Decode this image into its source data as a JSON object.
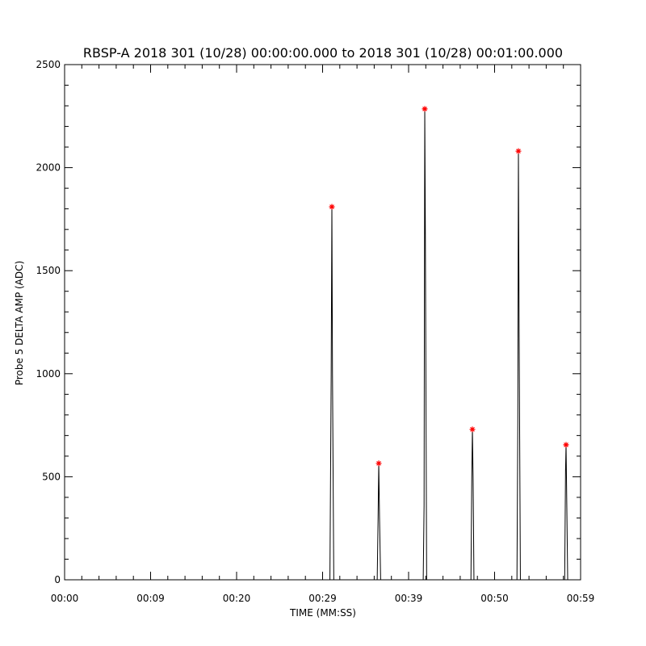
{
  "chart_data": {
    "type": "line",
    "title": "RBSP-A 2018 301 (10/28) 00:00:00.000 to 2018 301 (10/28) 00:01:00.000",
    "x_label": "TIME (MM:SS)",
    "y_label": "Probe 5 DELTA AMP (ADC)",
    "xlim": [
      0,
      60
    ],
    "xticks": [
      {
        "value": 0,
        "label": "00:00"
      },
      {
        "value": 10,
        "label": "00:09"
      },
      {
        "value": 20,
        "label": "00:20"
      },
      {
        "value": 30,
        "label": "00:29"
      },
      {
        "value": 40,
        "label": "00:39"
      },
      {
        "value": 50,
        "label": "00:50"
      },
      {
        "value": 60,
        "label": "00:59"
      }
    ],
    "ylim": [
      0,
      2500
    ],
    "yticks": [
      0,
      500,
      1000,
      1500,
      2000,
      2500
    ],
    "minor_divisions": 5,
    "series": [
      {
        "color": "#000000",
        "x": [
          0,
          30.85,
          31.0,
          31.08,
          31.15,
          31.3,
          36.35,
          36.45,
          36.53,
          36.62,
          36.75,
          41.7,
          41.8,
          41.88,
          41.95,
          42.1,
          47.25,
          47.35,
          47.42,
          47.5,
          47.6,
          52.6,
          52.7,
          52.77,
          52.85,
          53.0,
          58.15,
          58.25,
          58.31,
          58.4,
          58.5,
          60
        ],
        "values": [
          0,
          0,
          1000,
          1810,
          1000,
          0,
          0,
          290,
          565,
          300,
          0,
          0,
          360,
          2285,
          1680,
          0,
          0,
          500,
          730,
          500,
          0,
          0,
          760,
          2080,
          1230,
          0,
          0,
          530,
          655,
          350,
          0,
          0
        ]
      },
      {
        "color": "#ff0000",
        "marker": "*",
        "x": [
          31.08,
          36.53,
          41.88,
          47.42,
          52.77,
          58.31
        ],
        "values": [
          1810,
          565,
          2285,
          730,
          2080,
          655
        ]
      }
    ]
  }
}
